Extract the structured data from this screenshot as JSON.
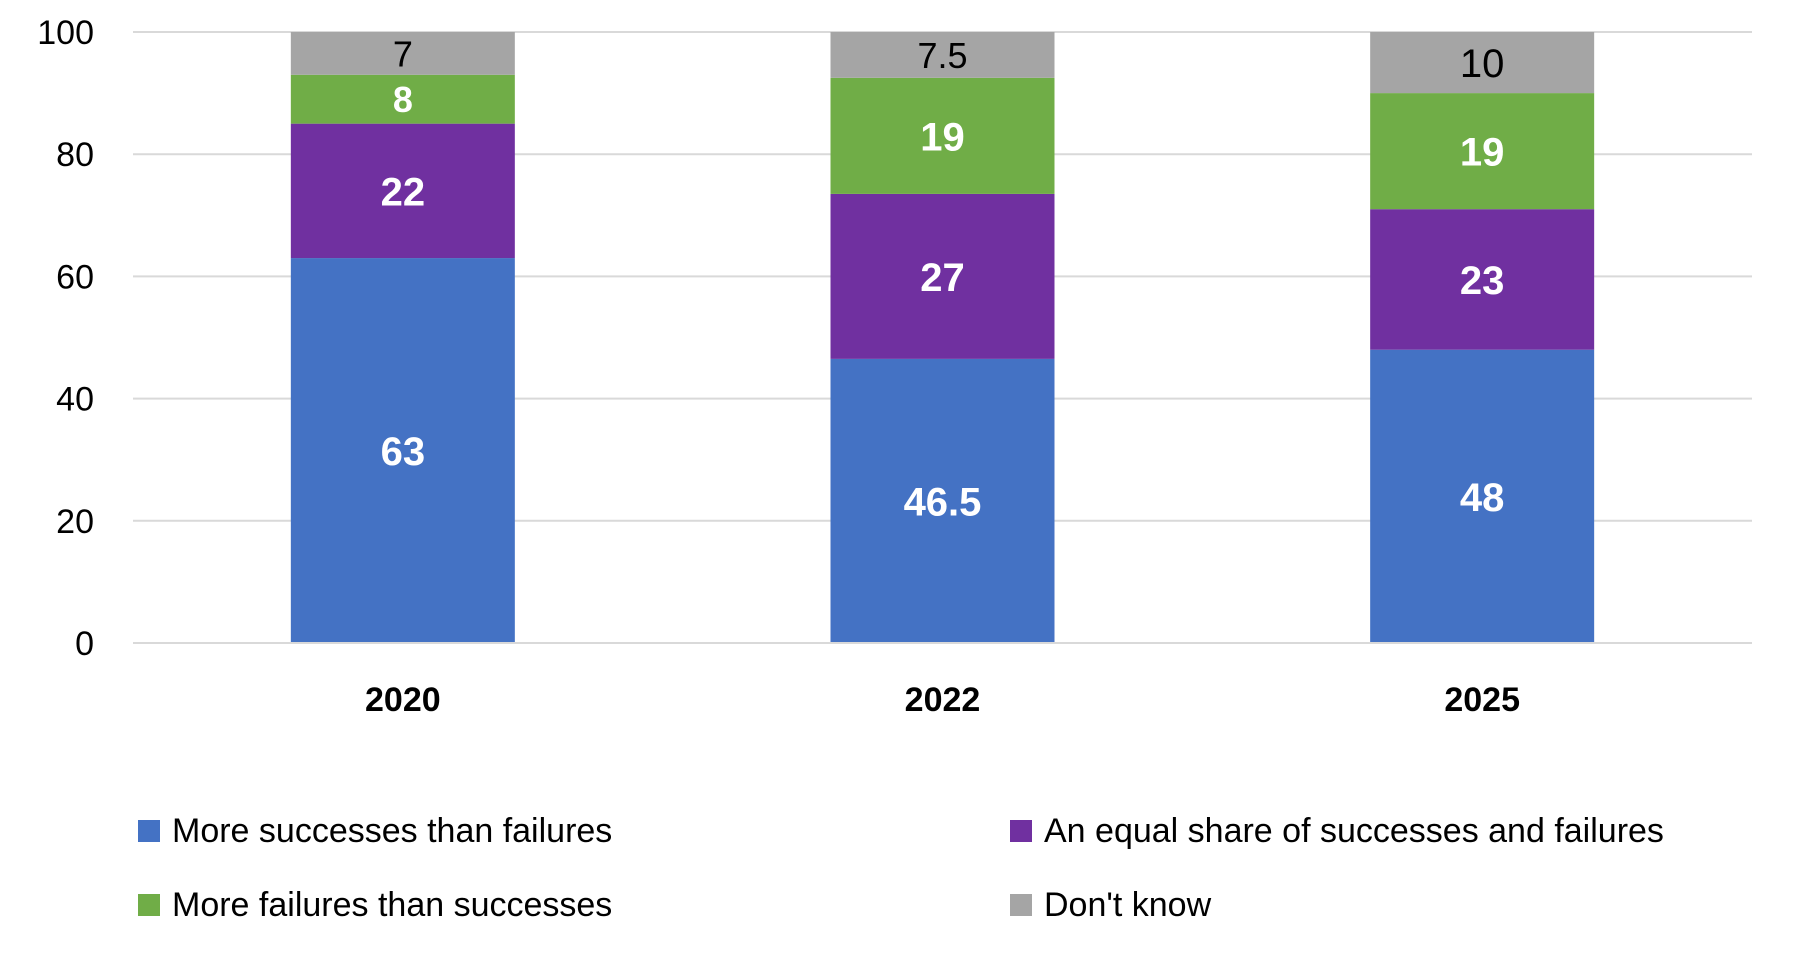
{
  "chart_data": {
    "type": "bar",
    "stacked": true,
    "categories": [
      "2020",
      "2022",
      "2025"
    ],
    "series": [
      {
        "name": "More successes than failures",
        "values": [
          63,
          46.5,
          48
        ],
        "color": "#4472C4",
        "label_color": "#FFFFFF"
      },
      {
        "name": "An equal share of successes and failures",
        "values": [
          22,
          27,
          23
        ],
        "color": "#7030A0",
        "label_color": "#FFFFFF"
      },
      {
        "name": "More failures than successes",
        "values": [
          8,
          19,
          19
        ],
        "color": "#70AD47",
        "label_color": "#FFFFFF"
      },
      {
        "name": "Don't know",
        "values": [
          7,
          7.5,
          10
        ],
        "color": "#A5A5A5",
        "label_color": "#000000"
      }
    ],
    "ylim": [
      0,
      100
    ],
    "yticks": [
      0,
      20,
      40,
      60,
      80,
      100
    ],
    "grid": true,
    "legend_position": "bottom",
    "title": "",
    "xlabel": "",
    "ylabel": ""
  }
}
